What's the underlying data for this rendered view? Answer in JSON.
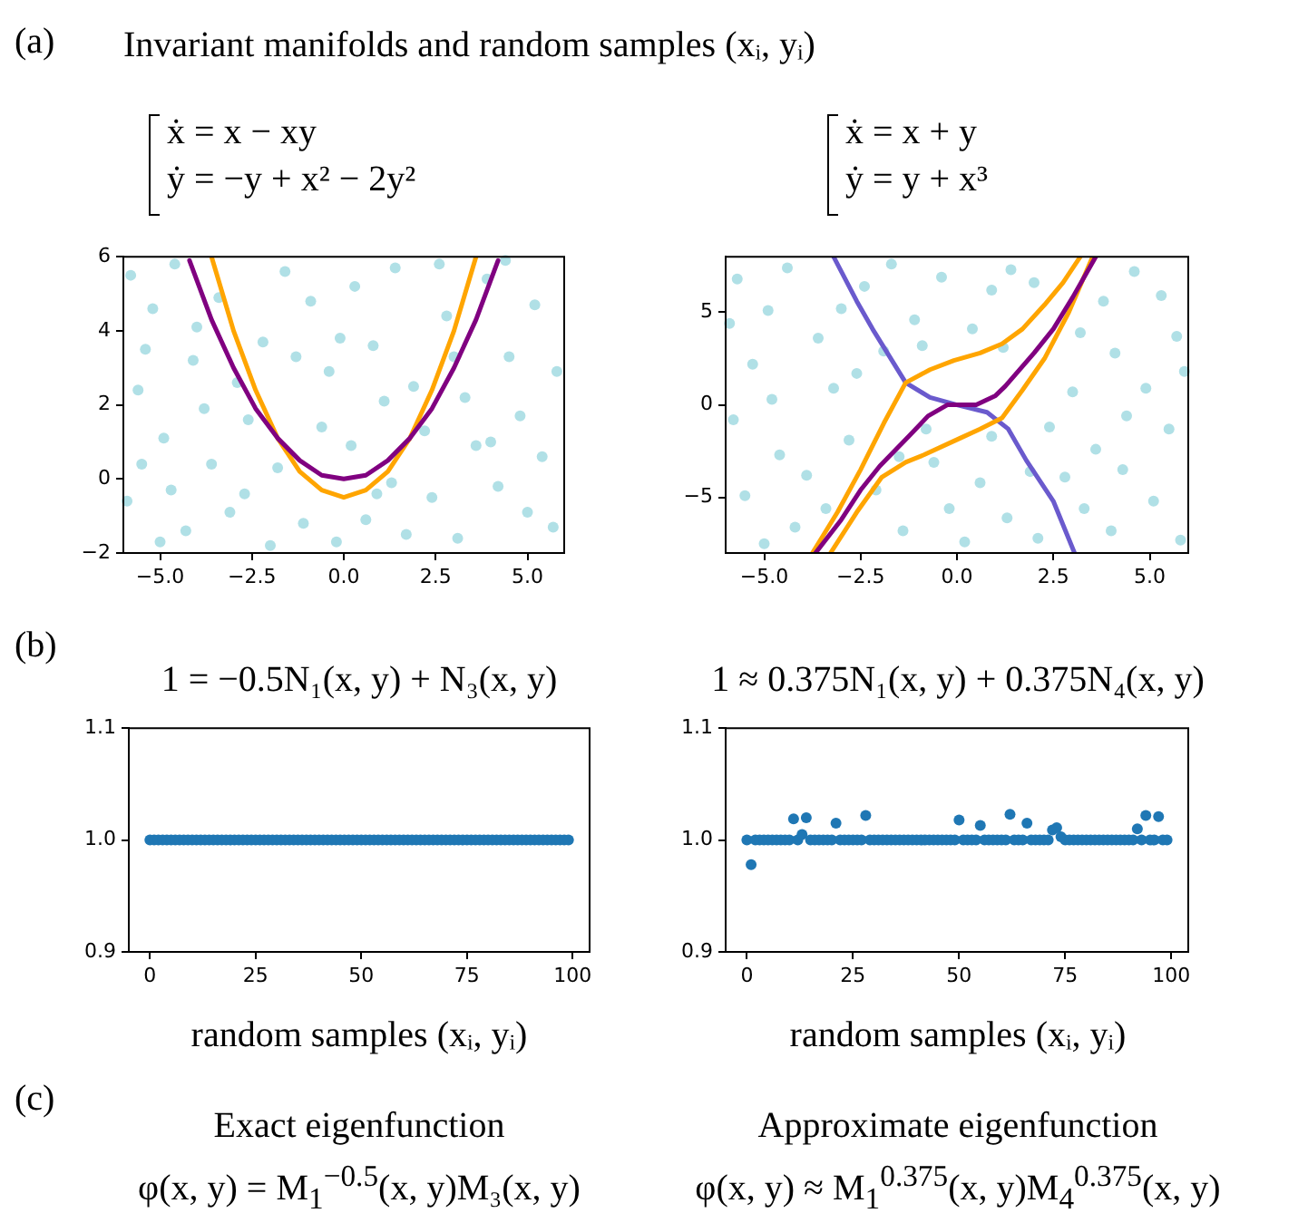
{
  "chart_data": [
    {
      "type": "scatter",
      "title": "Invariant manifolds and random samples (xᵢ, yᵢ)",
      "subtitle": "ẋ = x − xy\nẏ = −y + x² − 2y²",
      "annotations": [
        "(a)"
      ],
      "marker": "circle",
      "xlim": [
        -6,
        6
      ],
      "xticks": [
        {
          "value": -5,
          "label": "−5.0"
        },
        {
          "value": -2.5,
          "label": "−2.5"
        },
        {
          "value": 0,
          "label": "0.0"
        },
        {
          "value": 2.5,
          "label": "2.5"
        },
        {
          "value": 5,
          "label": "5.0"
        }
      ],
      "ylim": [
        -2,
        6
      ],
      "yticks": [
        {
          "value": -2,
          "label": "−2"
        },
        0,
        2,
        4,
        6
      ],
      "series": [
        {
          "type": "scatter",
          "color": "#b0e0e6",
          "x": [
            -5.8,
            -5.2,
            -4.6,
            -4.1,
            -5.6,
            -4.9,
            -5.9,
            -4.3,
            -3.6,
            -3.1,
            -2.6,
            -2.2,
            -1.6,
            -0.9,
            -0.4,
            0.3,
            0.8,
            1.4,
            1.9,
            -1.8,
            -1.1,
            -0.2,
            0.6,
            1.3,
            2.4,
            3.1,
            3.6,
            4.2,
            4.8,
            5.4,
            5.7,
            4.5,
            5.2,
            5.8,
            3.9,
            2.8,
            -3.4,
            -2.9,
            -4.7,
            -5.4,
            -3.8,
            -0.6,
            0.2,
            1.1,
            2.2,
            3.3,
            4.0,
            5.0,
            -2.0,
            -5.0,
            0.9,
            -1.3,
            2.6,
            -4.0,
            4.4,
            -5.5,
            3.0,
            -0.1,
            1.7,
            -2.7
          ],
          "values": [
            5.5,
            4.6,
            5.8,
            3.2,
            2.4,
            1.1,
            -0.6,
            -1.4,
            0.4,
            -0.9,
            1.6,
            3.7,
            5.6,
            4.8,
            2.9,
            5.2,
            3.6,
            5.7,
            2.5,
            0.3,
            -1.2,
            -1.7,
            -1.1,
            -0.1,
            -0.5,
            -1.6,
            0.9,
            -0.2,
            1.7,
            0.6,
            -1.3,
            3.3,
            4.7,
            2.9,
            5.4,
            4.4,
            4.9,
            2.6,
            -0.3,
            3.5,
            1.9,
            1.4,
            0.9,
            2.1,
            1.3,
            2.2,
            1.0,
            -0.9,
            -1.8,
            -1.7,
            -0.4,
            3.3,
            5.8,
            4.1,
            5.9,
            0.4,
            3.3,
            3.8,
            -1.5,
            -0.4
          ]
        },
        {
          "type": "line",
          "marker": "none",
          "color": "#ffa500",
          "x": [
            -3.6,
            -3.0,
            -2.4,
            -1.8,
            -1.2,
            -0.6,
            0,
            0.6,
            1.2,
            1.8,
            2.4,
            3.0,
            3.6
          ],
          "values": [
            6.0,
            4,
            2.4,
            1.1,
            0.2,
            -0.3,
            -0.5,
            -0.3,
            0.2,
            1.1,
            2.4,
            4,
            6.0
          ]
        },
        {
          "type": "line",
          "marker": "none",
          "color": "#800080",
          "x": [
            -4.2,
            -3.6,
            -3.0,
            -2.4,
            -1.8,
            -1.2,
            -0.6,
            0,
            0.6,
            1.2,
            1.8,
            2.4,
            3.0,
            3.6,
            4.2
          ],
          "values": [
            5.9,
            4.3,
            3,
            1.9,
            1.1,
            0.5,
            0.1,
            0,
            0.1,
            0.5,
            1.1,
            1.9,
            3,
            4.3,
            5.9
          ]
        }
      ]
    },
    {
      "type": "scatter",
      "subtitle": "ẋ = x + y\nẏ = y + x³",
      "marker": "circle",
      "xlim": [
        -6,
        6
      ],
      "xticks": [
        {
          "value": -5,
          "label": "−5.0"
        },
        {
          "value": -2.5,
          "label": "−2.5"
        },
        {
          "value": 0,
          "label": "0.0"
        },
        {
          "value": 2.5,
          "label": "2.5"
        },
        {
          "value": 5,
          "label": "5.0"
        }
      ],
      "ylim": [
        -8,
        8
      ],
      "yticks": [
        {
          "value": -5,
          "label": "−5"
        },
        0,
        5
      ],
      "series": [
        {
          "type": "scatter",
          "color": "#b0e0e6",
          "x": [
            -5.7,
            -4.9,
            -5.3,
            -4.4,
            -5.8,
            -4.6,
            -5.5,
            -4.2,
            -5.0,
            -3.6,
            -3.2,
            -2.8,
            -3.9,
            -2.4,
            -1.7,
            -1.1,
            -0.4,
            -1.9,
            -0.6,
            -0.2,
            -1.4,
            -2.1,
            0.4,
            0.9,
            1.4,
            0.6,
            1.3,
            0.2,
            1.9,
            2.4,
            2.1,
            3.0,
            3.6,
            4.1,
            3.8,
            4.6,
            5.3,
            5.7,
            4.9,
            5.5,
            4.3,
            5.1,
            4.0,
            5.8,
            3.3,
            2.8,
            -3.4,
            -4.8,
            -2.6,
            -0.9,
            1.2,
            3.2,
            4.4,
            5.9,
            -5.9,
            -3.0,
            2.0,
            -0.8,
            0.9,
            -1.5
          ],
          "values": [
            6.8,
            5.1,
            2.2,
            7.4,
            -0.8,
            -2.7,
            -4.9,
            -6.6,
            -7.5,
            3.6,
            0.9,
            -1.9,
            -3.8,
            6.4,
            7.6,
            4.6,
            6.9,
            2.9,
            -3.1,
            -5.6,
            -6.8,
            -4.6,
            4.1,
            6.2,
            7.3,
            -4.2,
            -6.1,
            -7.4,
            -3.6,
            -1.2,
            -7.2,
            0.7,
            -2.4,
            2.8,
            5.6,
            7.2,
            5.9,
            3.7,
            0.9,
            -1.3,
            -3.5,
            -5.2,
            -6.8,
            -7.3,
            -5.6,
            -3.9,
            -5.6,
            0.3,
            1.7,
            3.2,
            3.1,
            3.9,
            -0.6,
            1.8,
            4.4,
            5.2,
            6.6,
            -1.3,
            -1.7,
            -2.8
          ]
        },
        {
          "type": "line",
          "marker": "none",
          "color": "#6a5acd",
          "x": [
            -3.2,
            -2.6,
            -2.19,
            -1.33,
            -0.7,
            0,
            0.78,
            1.33,
            1.8,
            2.5,
            3.05
          ],
          "values": [
            8,
            5.6,
            4.1,
            1.2,
            0.4,
            0,
            -0.4,
            -1.3,
            -3.0,
            -5.2,
            -8
          ]
        },
        {
          "type": "line",
          "marker": "none",
          "color": "#ffa500",
          "x": [
            -3.75,
            -3.1,
            -2.5,
            -1.9,
            -1.33,
            -0.7,
            -0.08,
            0.6,
            1.17,
            1.7,
            2.27,
            2.75,
            3.2
          ],
          "values": [
            -8,
            -5.8,
            -3.5,
            -1.0,
            1.2,
            1.9,
            2.4,
            2.8,
            3.3,
            4.1,
            5.4,
            6.6,
            8
          ]
        },
        {
          "type": "line",
          "marker": "none",
          "color": "#ffa500",
          "x": [
            -3.28,
            -2.6,
            -1.95,
            -1.33,
            -0.86,
            0.08,
            0.6,
            1.17,
            1.7,
            2.27,
            2.9,
            3.52
          ],
          "values": [
            -8,
            -5.8,
            -3.9,
            -3.1,
            -2.7,
            -1.8,
            -1.3,
            -0.7,
            0.8,
            2.5,
            5.0,
            8
          ]
        },
        {
          "type": "line",
          "marker": "none",
          "color": "#800080",
          "x": [
            -3.67,
            -3.0,
            -2.5,
            -2.0,
            -1.25,
            -0.75,
            -0.25,
            0,
            0.5,
            1.0,
            1.25,
            2.0,
            2.5,
            3.0,
            3.6
          ],
          "values": [
            -8,
            -6.2,
            -4.6,
            -3.3,
            -1.7,
            -0.6,
            0,
            0,
            0,
            0.5,
            1.0,
            2.8,
            4.1,
            5.8,
            8
          ]
        }
      ]
    },
    {
      "type": "scatter",
      "title": "1 = −0.5N₁(x, y) + N₃(x, y)",
      "xlabel": "random samples (xᵢ, yᵢ)",
      "annotations": [
        "(b)",
        "(c)",
        "Exact eigenfunction",
        "φ(x, y) = M$_{1}$$^{−0.5}$(x, y)M₃(x, y)"
      ],
      "marker": "circle",
      "xlim": [
        -5,
        104
      ],
      "xticks": [
        0,
        25,
        50,
        75,
        100
      ],
      "ylim": [
        0.9,
        1.1
      ],
      "yticks": [
        {
          "value": 0.9,
          "label": "0.9"
        },
        {
          "value": 1,
          "label": "1.0"
        },
        {
          "value": 1.1,
          "label": "1.1"
        }
      ],
      "series": [
        {
          "type": "scatter",
          "color": "#1f77b4",
          "x": [
            0,
            1,
            2,
            3,
            4,
            5,
            6,
            7,
            8,
            9,
            10,
            11,
            12,
            13,
            14,
            15,
            16,
            17,
            18,
            19,
            20,
            21,
            22,
            23,
            24,
            25,
            26,
            27,
            28,
            29,
            30,
            31,
            32,
            33,
            34,
            35,
            36,
            37,
            38,
            39,
            40,
            41,
            42,
            43,
            44,
            45,
            46,
            47,
            48,
            49,
            50,
            51,
            52,
            53,
            54,
            55,
            56,
            57,
            58,
            59,
            60,
            61,
            62,
            63,
            64,
            65,
            66,
            67,
            68,
            69,
            70,
            71,
            72,
            73,
            74,
            75,
            76,
            77,
            78,
            79,
            80,
            81,
            82,
            83,
            84,
            85,
            86,
            87,
            88,
            89,
            90,
            91,
            92,
            93,
            94,
            95,
            96,
            97,
            98,
            99
          ],
          "values": [
            1,
            1,
            1,
            1,
            1,
            1,
            1,
            1,
            1,
            1,
            1,
            1,
            1,
            1,
            1,
            1,
            1,
            1,
            1,
            1,
            1,
            1,
            1,
            1,
            1,
            1,
            1,
            1,
            1,
            1,
            1,
            1,
            1,
            1,
            1,
            1,
            1,
            1,
            1,
            1,
            1,
            1,
            1,
            1,
            1,
            1,
            1,
            1,
            1,
            1,
            1,
            1,
            1,
            1,
            1,
            1,
            1,
            1,
            1,
            1,
            1,
            1,
            1,
            1,
            1,
            1,
            1,
            1,
            1,
            1,
            1,
            1,
            1,
            1,
            1,
            1,
            1,
            1,
            1,
            1,
            1,
            1,
            1,
            1,
            1,
            1,
            1,
            1,
            1,
            1,
            1,
            1,
            1,
            1,
            1,
            1,
            1,
            1,
            1,
            1
          ]
        }
      ]
    },
    {
      "type": "scatter",
      "title": "1 ≈ 0.375N₁(x, y) + 0.375N₄(x, y)",
      "xlabel": "random samples (xᵢ, yᵢ)",
      "annotations": [
        "Approximate eigenfunction",
        "φ(x, y) ≈ M$_{1}$$^{0.375}$(x, y)M$_{4}$$^{0.375}$(x, y)"
      ],
      "marker": "circle",
      "xlim": [
        -5,
        104
      ],
      "xticks": [
        0,
        25,
        50,
        75,
        100
      ],
      "ylim": [
        0.9,
        1.1
      ],
      "yticks": [
        {
          "value": 0.9,
          "label": "0.9"
        },
        {
          "value": 1,
          "label": "1.0"
        },
        {
          "value": 1.1,
          "label": "1.1"
        }
      ],
      "series": [
        {
          "type": "scatter",
          "color": "#1f77b4",
          "x": [
            0,
            1,
            2,
            3,
            4,
            5,
            6,
            7,
            8,
            9,
            10,
            11,
            12,
            13,
            14,
            15,
            16,
            17,
            18,
            19,
            20,
            21,
            22,
            23,
            24,
            25,
            26,
            27,
            28,
            29,
            30,
            31,
            32,
            33,
            34,
            35,
            36,
            37,
            38,
            39,
            40,
            41,
            42,
            43,
            44,
            45,
            46,
            47,
            48,
            49,
            50,
            51,
            52,
            53,
            54,
            55,
            56,
            57,
            58,
            59,
            60,
            61,
            62,
            63,
            64,
            65,
            66,
            67,
            68,
            69,
            70,
            71,
            72,
            73,
            74,
            75,
            76,
            77,
            78,
            79,
            80,
            81,
            82,
            83,
            84,
            85,
            86,
            87,
            88,
            89,
            90,
            91,
            92,
            93,
            94,
            95,
            96,
            97,
            98,
            99
          ],
          "values": [
            1,
            0.978,
            1,
            1,
            1,
            1,
            1,
            1,
            1,
            1,
            1,
            1.019,
            1,
            1.005,
            1.02,
            1,
            1,
            1,
            1,
            1,
            1,
            1.015,
            1,
            1,
            1,
            1,
            1,
            1,
            1.022,
            1,
            1,
            1,
            1,
            1,
            1,
            1,
            1,
            1,
            1,
            1,
            1,
            1,
            1,
            1,
            1,
            1,
            1,
            1,
            1,
            1,
            1.018,
            1,
            1,
            1,
            1,
            1.013,
            1,
            1,
            1,
            1,
            1,
            1,
            1.023,
            1,
            1,
            1,
            1.015,
            1,
            1,
            1,
            1,
            1,
            1.009,
            1.011,
            1.003,
            1,
            1,
            1,
            1,
            1,
            1,
            1,
            1,
            1,
            1,
            1,
            1,
            1,
            1,
            1,
            1,
            1,
            1.01,
            1,
            1.022,
            1,
            1,
            1.021,
            1,
            1
          ]
        }
      ]
    }
  ]
}
